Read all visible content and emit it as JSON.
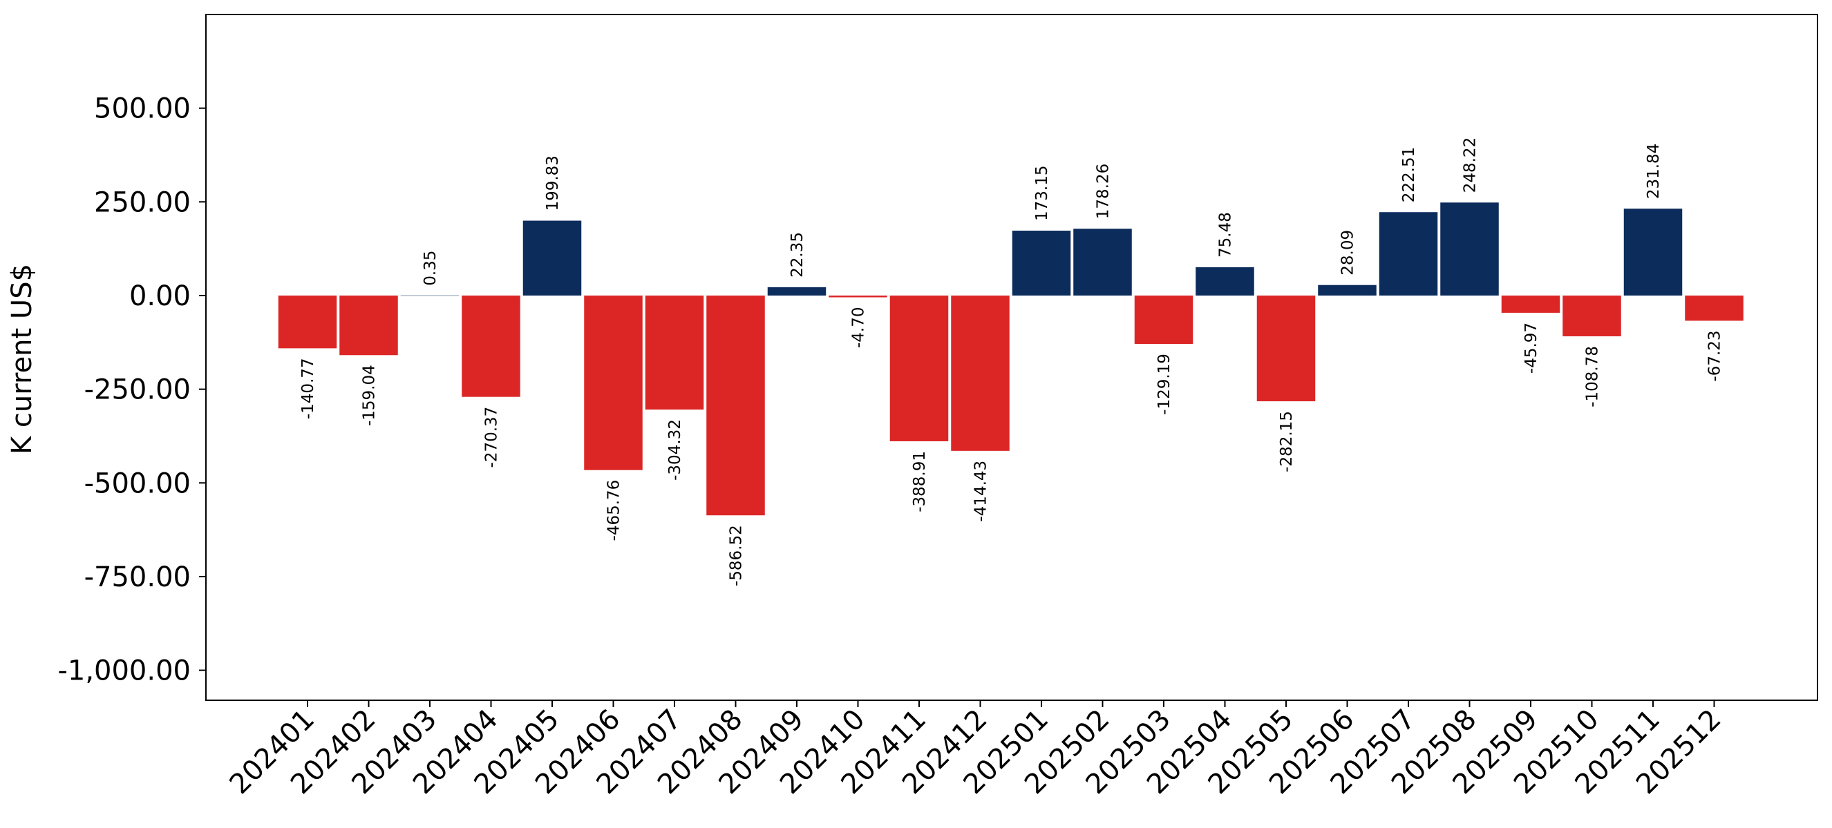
{
  "chart_data": {
    "type": "bar",
    "ylabel": "K current US$",
    "xlabel": "",
    "title": "",
    "ylim": [
      -1080,
      750
    ],
    "yticks": [
      500,
      250,
      0,
      -250,
      -500,
      -750,
      -1000
    ],
    "ytick_labels": [
      "500.00",
      "250.00",
      "0.00",
      "-250.00",
      "-500.00",
      "-750.00",
      "-1,000.00"
    ],
    "categories": [
      "202401",
      "202402",
      "202403",
      "202404",
      "202405",
      "202406",
      "202407",
      "202408",
      "202409",
      "202410",
      "202411",
      "202412",
      "202501",
      "202502",
      "202503",
      "202504",
      "202505",
      "202506",
      "202507",
      "202508",
      "202509",
      "202510",
      "202511",
      "202512"
    ],
    "values": [
      -140.77,
      -159.04,
      0.35,
      -270.37,
      199.83,
      -465.76,
      -304.32,
      -586.52,
      22.35,
      -4.7,
      -388.91,
      -414.43,
      173.15,
      178.26,
      -129.19,
      75.48,
      -282.15,
      28.09,
      222.51,
      248.22,
      -45.97,
      -108.78,
      231.84,
      -67.23
    ],
    "value_labels": [
      "-140.77",
      "-159.04",
      "0.35",
      "-270.37",
      "199.83",
      "-465.76",
      "-304.32",
      "-586.52",
      "22.35",
      "-4.70",
      "-388.91",
      "-414.43",
      "173.15",
      "178.26",
      "-129.19",
      "75.48",
      "-282.15",
      "28.09",
      "222.51",
      "248.22",
      "-45.97",
      "-108.78",
      "231.84",
      "-67.23"
    ],
    "colors": {
      "positive": "#0c2c5c",
      "negative": "#dc2626"
    },
    "grid": false,
    "legend": "none"
  }
}
